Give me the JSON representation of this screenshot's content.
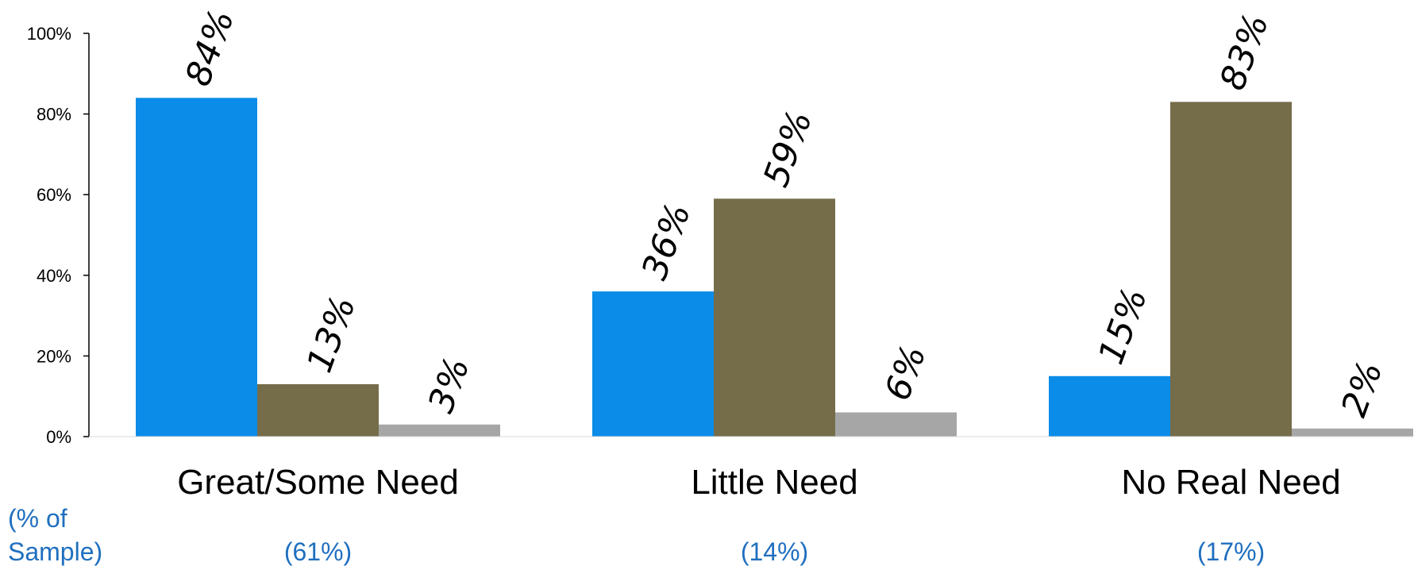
{
  "chart_data": {
    "type": "bar",
    "categories": [
      "Great/Some Need",
      "Little Need",
      "No Real Need"
    ],
    "series": [
      {
        "values": [
          84,
          36,
          15
        ]
      },
      {
        "values": [
          13,
          59,
          83
        ]
      },
      {
        "values": [
          3,
          6,
          2
        ]
      }
    ],
    "data_labels": [
      [
        "84%",
        "36%",
        "15%"
      ],
      [
        "13%",
        "59%",
        "83%"
      ],
      [
        "3%",
        "6%",
        "2%"
      ]
    ],
    "ylim": [
      0,
      100
    ],
    "yticks": [
      0,
      20,
      40,
      60,
      80,
      100
    ],
    "ytick_labels": [
      "0%",
      "20%",
      "40%",
      "60%",
      "80%",
      "100%"
    ],
    "grid": false,
    "sample_header_line1": "(% of",
    "sample_header_line2": "Sample)",
    "sample_labels": [
      "(61%)",
      "(14%)",
      "(17%)"
    ],
    "colors": {
      "series": [
        "#0A8CE8",
        "#756C4A",
        "#A6A6A6"
      ],
      "sample_text": "#1F6FBF",
      "axis": "#000000"
    }
  }
}
